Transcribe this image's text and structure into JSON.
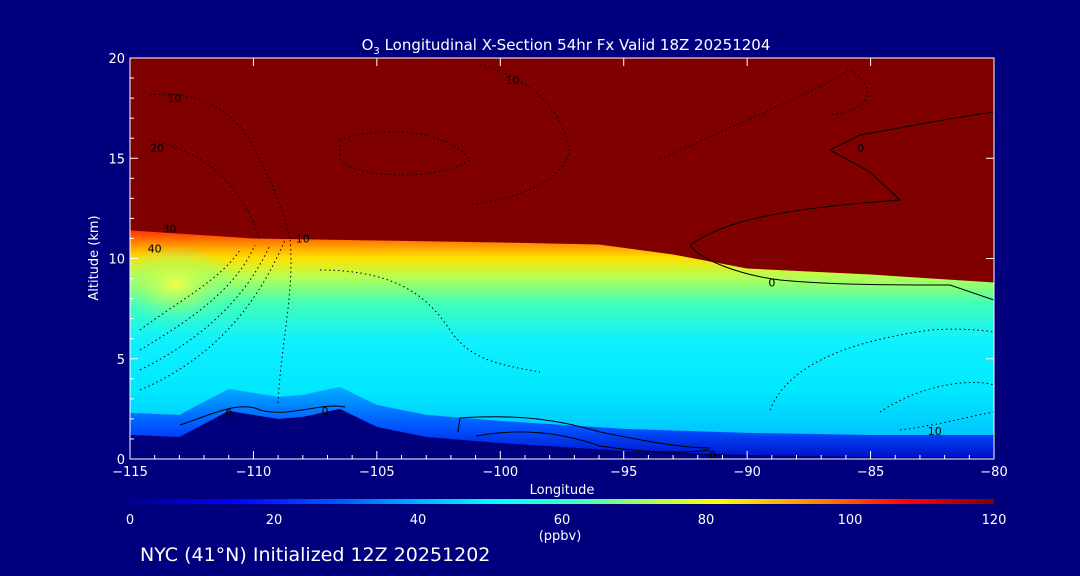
{
  "chart_data": {
    "type": "heatmap",
    "title": {
      "species_base": "O",
      "species_sub": "3",
      "rest": " Longitudinal X-Section 54hr  Fx Valid 18Z 20251204"
    },
    "xlabel": "Longitude",
    "ylabel": "Altitude (km)",
    "xlim": [
      -115,
      -80
    ],
    "ylim": [
      0,
      20
    ],
    "x_ticks": [
      -115,
      -110,
      -105,
      -100,
      -95,
      -90,
      -85,
      -80
    ],
    "x_tick_labels": [
      "−115",
      "−110",
      "−105",
      "−100",
      "−95",
      "−90",
      "−85",
      "−80"
    ],
    "y_ticks": [
      0,
      5,
      10,
      15,
      20
    ],
    "y_tick_labels": [
      "0",
      "5",
      "10",
      "15",
      "20"
    ],
    "colorbar": {
      "min": 0,
      "max": 120,
      "ticks": [
        0,
        20,
        40,
        60,
        80,
        100,
        120
      ],
      "tick_labels": [
        "0",
        "20",
        "40",
        "60",
        "80",
        "100",
        "120"
      ],
      "units": "(ppbv)",
      "colors": [
        "#00008f",
        "#0000ff",
        "#0060ff",
        "#00c0ff",
        "#00ffff",
        "#40ffc0",
        "#c0ff40",
        "#ffff00",
        "#ff8000",
        "#ff0000",
        "#800000"
      ]
    },
    "tropopause_altitude_km": [
      {
        "lon": -115,
        "alt": 11.4
      },
      {
        "lon": -110,
        "alt": 11.0
      },
      {
        "lon": -105,
        "alt": 10.9
      },
      {
        "lon": -100,
        "alt": 10.8
      },
      {
        "lon": -96,
        "alt": 10.7
      },
      {
        "lon": -93,
        "alt": 10.2
      },
      {
        "lon": -90,
        "alt": 9.5
      },
      {
        "lon": -85,
        "alt": 9.2
      },
      {
        "lon": -80,
        "alt": 8.8
      }
    ],
    "terrain_altitude_km": [
      {
        "lon": -115,
        "alt": 1.2
      },
      {
        "lon": -113,
        "alt": 1.1
      },
      {
        "lon": -111,
        "alt": 2.4
      },
      {
        "lon": -109,
        "alt": 2.0
      },
      {
        "lon": -108,
        "alt": 2.1
      },
      {
        "lon": -106.5,
        "alt": 2.5
      },
      {
        "lon": -105,
        "alt": 1.6
      },
      {
        "lon": -103,
        "alt": 1.1
      },
      {
        "lon": -100,
        "alt": 0.8
      },
      {
        "lon": -95,
        "alt": 0.4
      },
      {
        "lon": -90,
        "alt": 0.2
      },
      {
        "lon": -85,
        "alt": 0.1
      },
      {
        "lon": -80,
        "alt": 0.1
      }
    ],
    "contour_labels": [
      {
        "text": "10",
        "lon": -99.5,
        "alt": 18.9
      },
      {
        "text": "10",
        "lon": -113.2,
        "alt": 18.0
      },
      {
        "text": "20",
        "lon": -113.9,
        "alt": 15.5
      },
      {
        "text": "30",
        "lon": -113.4,
        "alt": 11.5
      },
      {
        "text": "40",
        "lon": -114.0,
        "alt": 10.5
      },
      {
        "text": "10",
        "lon": -108.0,
        "alt": 11.0
      },
      {
        "text": "0",
        "lon": -85.4,
        "alt": 15.5
      },
      {
        "text": "0",
        "lon": -89.0,
        "alt": 8.8
      },
      {
        "text": "0",
        "lon": -111.0,
        "alt": 2.3
      },
      {
        "text": "0",
        "lon": -107.1,
        "alt": 2.4
      },
      {
        "text": "0",
        "lon": -91.4,
        "alt": 0.2
      },
      {
        "text": "10",
        "lon": -82.4,
        "alt": 1.4
      }
    ]
  },
  "footer": {
    "text": "NYC (41°N) Initialized 12Z 20251202"
  }
}
